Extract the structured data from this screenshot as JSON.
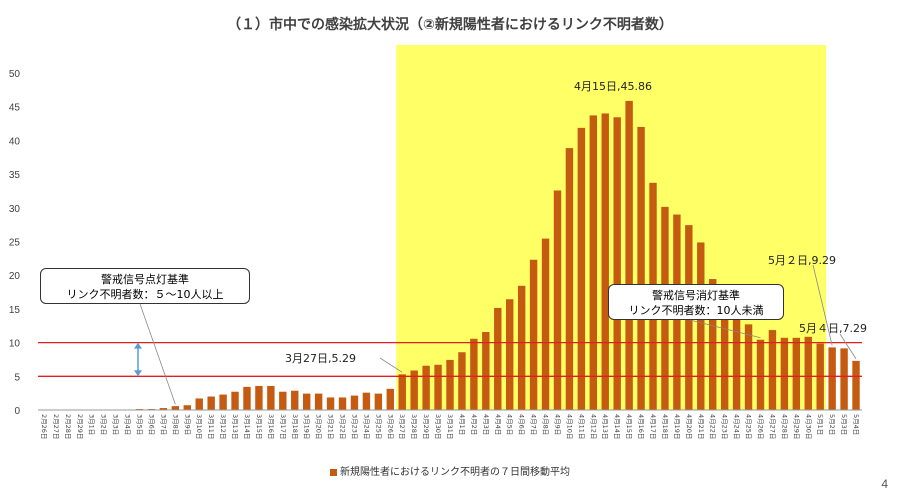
{
  "title": "（１）市中での感染拡大状況（②新規陽性者におけるリンク不明者数）",
  "page_number": "4",
  "legend_label": "新規陽性者におけるリンク不明者の７日間移動平均",
  "callout_lit": {
    "line1": "警戒信号点灯基準",
    "line2": "リンク不明者数：５～10人以上"
  },
  "callout_off": {
    "line1": "警戒信号消灯基準",
    "line2": "リンク不明者数：10人未満"
  },
  "annotations": {
    "apr15": "4月15日,45.86",
    "mar27": "3月27日,5.29",
    "may2": "5月２日,9.29",
    "may4": "5月４日,7.29"
  },
  "colors": {
    "bar": "#c55a11",
    "highlight": "#ffff66",
    "threshold_line": "#e02020",
    "arrow": "#5b9bd5"
  },
  "chart_data": {
    "type": "bar",
    "title": "（１）市中での感染拡大状況（②新規陽性者におけるリンク不明者数）",
    "ylim": [
      0,
      50
    ],
    "yticks": [
      0,
      5,
      10,
      15,
      20,
      25,
      30,
      35,
      40,
      45,
      50
    ],
    "grid": false,
    "legend_position": "bottom",
    "reference_lines": [
      5,
      10
    ],
    "highlight_range": [
      "3月27日",
      "5月1日"
    ],
    "categories": [
      "2月26日",
      "2月27日",
      "2月28日",
      "2月29日",
      "3月1日",
      "3月2日",
      "3月3日",
      "3月4日",
      "3月5日",
      "3月6日",
      "3月7日",
      "3月8日",
      "3月9日",
      "3月10日",
      "3月11日",
      "3月12日",
      "3月13日",
      "3月14日",
      "3月15日",
      "3月16日",
      "3月17日",
      "3月18日",
      "3月19日",
      "3月20日",
      "3月21日",
      "3月22日",
      "3月23日",
      "3月24日",
      "3月25日",
      "3月26日",
      "3月27日",
      "3月28日",
      "3月29日",
      "3月30日",
      "3月31日",
      "4月1日",
      "4月2日",
      "4月3日",
      "4月4日",
      "4月5日",
      "4月6日",
      "4月7日",
      "4月8日",
      "4月9日",
      "4月10日",
      "4月11日",
      "4月12日",
      "4月13日",
      "4月14日",
      "4月15日",
      "4月16日",
      "4月17日",
      "4月18日",
      "4月19日",
      "4月20日",
      "4月21日",
      "4月22日",
      "4月23日",
      "4月24日",
      "4月25日",
      "4月26日",
      "4月27日",
      "4月28日",
      "4月29日",
      "4月30日",
      "5月1日",
      "5月2日",
      "5月3日",
      "5月4日"
    ],
    "series": [
      {
        "name": "新規陽性者におけるリンク不明者の７日間移動平均",
        "values": [
          0,
          0,
          0,
          0,
          0,
          0,
          0,
          0,
          0.14,
          0.14,
          0.29,
          0.57,
          0.71,
          1.71,
          2.0,
          2.29,
          2.71,
          3.43,
          3.57,
          3.57,
          2.71,
          2.86,
          2.43,
          2.43,
          1.86,
          1.86,
          2.14,
          2.57,
          2.43,
          3.14,
          5.29,
          5.86,
          6.57,
          6.71,
          7.43,
          8.57,
          10.57,
          11.57,
          15.14,
          16.43,
          18.43,
          22.29,
          25.43,
          32.57,
          38.86,
          41.86,
          43.71,
          44.0,
          43.43,
          45.86,
          42.0,
          33.71,
          30.14,
          29.0,
          27.43,
          24.86,
          19.43,
          17.43,
          15.0,
          12.71,
          10.43,
          11.86,
          10.71,
          10.71,
          10.86,
          9.86,
          9.29,
          9.14,
          7.29
        ]
      }
    ]
  }
}
